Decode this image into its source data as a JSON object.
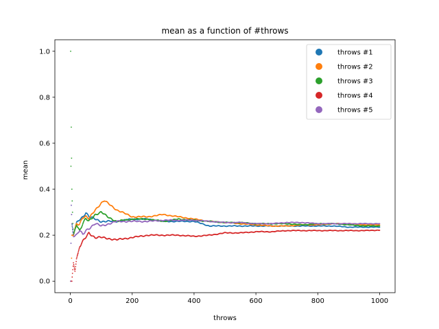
{
  "chart_data": {
    "type": "scatter",
    "title": "mean as a function of #throws",
    "xlabel": "throws",
    "ylabel": "mean",
    "xlim": [
      -50,
      1050
    ],
    "ylim": [
      -0.05,
      1.05
    ],
    "xticks": [
      0,
      200,
      400,
      600,
      800,
      1000
    ],
    "yticks": [
      0.0,
      0.2,
      0.4,
      0.6,
      0.8,
      1.0
    ],
    "xtick_labels": [
      "0",
      "200",
      "400",
      "600",
      "800",
      "1000"
    ],
    "ytick_labels": [
      "0.0",
      "0.2",
      "0.4",
      "0.6",
      "0.8",
      "1.0"
    ],
    "grid": false,
    "legend_position": "top-right",
    "n_points": 1000,
    "series": [
      {
        "name": "throws #1",
        "color": "#1f77b4",
        "x": [
          1,
          3,
          5,
          10,
          20,
          30,
          40,
          50,
          60,
          80,
          100,
          150,
          200,
          250,
          300,
          350,
          400,
          450,
          500,
          550,
          600,
          650,
          700,
          750,
          800,
          850,
          900,
          950,
          1000
        ],
        "y": [
          0,
          0.33,
          0.25,
          0.2,
          0.25,
          0.27,
          0.28,
          0.3,
          0.28,
          0.27,
          0.26,
          0.26,
          0.27,
          0.27,
          0.26,
          0.26,
          0.26,
          0.24,
          0.24,
          0.24,
          0.24,
          0.24,
          0.24,
          0.24,
          0.24,
          0.24,
          0.235,
          0.235,
          0.235
        ]
      },
      {
        "name": "throws #2",
        "color": "#ff7f0e",
        "x": [
          1,
          3,
          5,
          10,
          20,
          30,
          40,
          50,
          60,
          80,
          100,
          110,
          120,
          150,
          200,
          250,
          300,
          350,
          400,
          450,
          500,
          550,
          600,
          650,
          700,
          750,
          800,
          850,
          900,
          950,
          1000
        ],
        "y": [
          0,
          0,
          0.2,
          0.2,
          0.25,
          0.25,
          0.28,
          0.28,
          0.27,
          0.31,
          0.34,
          0.35,
          0.34,
          0.31,
          0.28,
          0.28,
          0.29,
          0.28,
          0.27,
          0.26,
          0.255,
          0.25,
          0.245,
          0.24,
          0.24,
          0.245,
          0.245,
          0.25,
          0.25,
          0.245,
          0.245
        ]
      },
      {
        "name": "throws #3",
        "color": "#2ca02c",
        "x": [
          1,
          2,
          3,
          5,
          8,
          10,
          20,
          30,
          40,
          50,
          60,
          80,
          100,
          120,
          150,
          200,
          250,
          300,
          350,
          400,
          450,
          500,
          550,
          600,
          650,
          700,
          750,
          800,
          850,
          900,
          950,
          1000
        ],
        "y": [
          1.0,
          0.5,
          0.67,
          0.4,
          0.25,
          0.2,
          0.25,
          0.22,
          0.25,
          0.27,
          0.26,
          0.29,
          0.3,
          0.28,
          0.26,
          0.27,
          0.27,
          0.26,
          0.27,
          0.265,
          0.26,
          0.255,
          0.255,
          0.25,
          0.25,
          0.25,
          0.245,
          0.25,
          0.25,
          0.245,
          0.24,
          0.24
        ]
      },
      {
        "name": "throws #4",
        "color": "#d62728",
        "x": [
          1,
          3,
          5,
          10,
          15,
          20,
          25,
          30,
          40,
          50,
          60,
          80,
          100,
          150,
          200,
          250,
          300,
          350,
          400,
          450,
          500,
          550,
          600,
          650,
          700,
          750,
          800,
          850,
          900,
          950,
          1000
        ],
        "y": [
          0,
          0,
          0,
          0.08,
          0.05,
          0.1,
          0.12,
          0.15,
          0.17,
          0.19,
          0.21,
          0.19,
          0.19,
          0.18,
          0.19,
          0.2,
          0.2,
          0.2,
          0.195,
          0.2,
          0.21,
          0.21,
          0.215,
          0.215,
          0.22,
          0.22,
          0.22,
          0.22,
          0.22,
          0.22,
          0.222
        ]
      },
      {
        "name": "throws #5",
        "color": "#9467bd",
        "x": [
          1,
          3,
          5,
          10,
          20,
          30,
          40,
          50,
          60,
          70,
          80,
          100,
          150,
          200,
          250,
          300,
          350,
          400,
          450,
          500,
          550,
          600,
          650,
          700,
          750,
          800,
          850,
          900,
          950,
          1000
        ],
        "y": [
          0,
          0.33,
          0.25,
          0.2,
          0.2,
          0.22,
          0.2,
          0.22,
          0.23,
          0.24,
          0.25,
          0.24,
          0.26,
          0.26,
          0.26,
          0.265,
          0.265,
          0.265,
          0.26,
          0.255,
          0.255,
          0.25,
          0.25,
          0.255,
          0.255,
          0.25,
          0.25,
          0.25,
          0.25,
          0.25
        ]
      }
    ]
  }
}
